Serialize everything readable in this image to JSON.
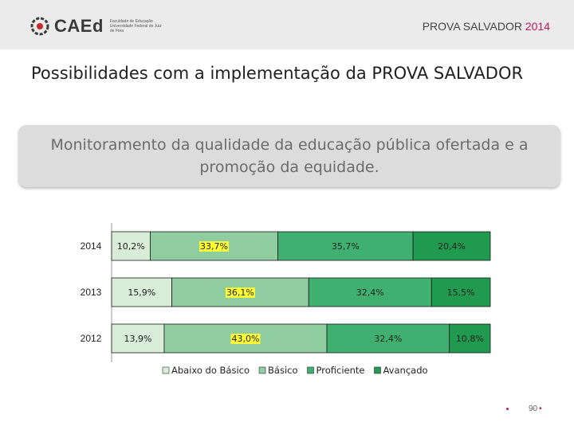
{
  "header": {
    "logo_text": "CAEd",
    "logo_subtitle": "Faculdade de Educação Universidade Federal de Juiz de Fora",
    "right_title": "PROVA SALVADOR",
    "right_year": "2014"
  },
  "slide": {
    "title": "Possibilidades com a implementação da PROVA SALVADOR",
    "banner": "Monitoramento da qualidade da educação pública ofertada e a promoção da equidade."
  },
  "footer": {
    "page_number": "90"
  },
  "colors": {
    "abaixo": "#d8ecd8",
    "basico": "#8fcc9f",
    "proficiente": "#3fb070",
    "avancado": "#1f9a4f",
    "accent": "#c2185b"
  },
  "chart_data": {
    "type": "bar",
    "orientation": "horizontal",
    "stacked": "100%",
    "categories": [
      "2014",
      "2013",
      "2012"
    ],
    "series": [
      {
        "name": "Abaixo do Básico",
        "values": [
          10.2,
          15.9,
          13.9
        ],
        "labels": [
          "10,2%",
          "15,9%",
          "13,9%"
        ]
      },
      {
        "name": "Básico",
        "values": [
          33.7,
          36.1,
          43.0
        ],
        "labels": [
          "33,7%",
          "36,1%",
          "43,0%"
        ]
      },
      {
        "name": "Proficiente",
        "values": [
          35.7,
          32.4,
          32.4
        ],
        "labels": [
          "35,7%",
          "32,4%",
          "32,4%"
        ]
      },
      {
        "name": "Avançado",
        "values": [
          20.4,
          15.5,
          10.8
        ],
        "labels": [
          "20,4%",
          "15,5%",
          "10,8%"
        ]
      }
    ],
    "legend_position": "bottom",
    "grid": false
  }
}
